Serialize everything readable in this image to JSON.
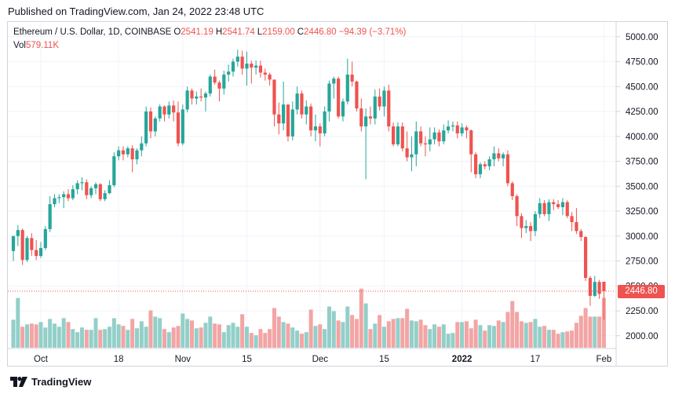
{
  "header": {
    "published": "Published on TradingView.com, Jan 24, 2022 23:48 UTC"
  },
  "legend": {
    "symbol": "Ethereum / U.S. Dollar, 1D, COINBASE",
    "open_label": "O",
    "open": "2541.19",
    "high_label": "H",
    "high": "2541.74",
    "low_label": "L",
    "low": "2159.00",
    "close_label": "C",
    "close": "2446.80",
    "change": "−94.39 (−3.71%)",
    "vol_label": "Vol",
    "vol": "579.11K"
  },
  "last_price": "2446.80",
  "footer": {
    "brand": "TradingView"
  },
  "colors": {
    "up": "#26a69a",
    "down": "#ef5350",
    "up_vol": "#93cfc9",
    "down_vol": "#f3a4a4",
    "grid": "#f0f3fa"
  },
  "chart_data": {
    "type": "candlestick",
    "title": "Ethereum / U.S. Dollar, 1D, COINBASE",
    "y_axis_ticks": [
      "5000.00",
      "4750.00",
      "4500.00",
      "4250.00",
      "4000.00",
      "3750.00",
      "3500.00",
      "3250.00",
      "3000.00",
      "2750.00",
      "2500.00",
      "2250.00",
      "2000.00"
    ],
    "ylim": [
      1880,
      5140
    ],
    "x_axis_ticks": [
      {
        "label": "Oct",
        "index": 6
      },
      {
        "label": "18",
        "index": 23
      },
      {
        "label": "Nov",
        "index": 37
      },
      {
        "label": "15",
        "index": 51
      },
      {
        "label": "Dec",
        "index": 67
      },
      {
        "label": "15",
        "index": 81
      },
      {
        "label": "2022",
        "index": 98,
        "bold": true
      },
      {
        "label": "17",
        "index": 114
      },
      {
        "label": "Feb",
        "index": 129
      }
    ],
    "x_range": [
      -1.2,
      131.5
    ],
    "ohlc": [
      [
        2850,
        3000,
        2750,
        3000
      ],
      [
        3000,
        3110,
        2900,
        3060
      ],
      [
        3060,
        3075,
        2710,
        2760
      ],
      [
        2760,
        3000,
        2740,
        2980
      ],
      [
        2980,
        3030,
        2800,
        2860
      ],
      [
        2860,
        2960,
        2760,
        2800
      ],
      [
        2800,
        2940,
        2780,
        2880
      ],
      [
        2880,
        3100,
        2860,
        3070
      ],
      [
        3070,
        3400,
        3040,
        3320
      ],
      [
        3320,
        3420,
        3290,
        3380
      ],
      [
        3380,
        3420,
        3330,
        3390
      ],
      [
        3390,
        3450,
        3280,
        3420
      ],
      [
        3420,
        3470,
        3350,
        3380
      ],
      [
        3380,
        3510,
        3360,
        3470
      ],
      [
        3470,
        3560,
        3420,
        3530
      ],
      [
        3530,
        3590,
        3460,
        3540
      ],
      [
        3540,
        3570,
        3370,
        3410
      ],
      [
        3410,
        3500,
        3380,
        3480
      ],
      [
        3480,
        3540,
        3420,
        3520
      ],
      [
        3520,
        3530,
        3350,
        3370
      ],
      [
        3370,
        3460,
        3350,
        3430
      ],
      [
        3430,
        3560,
        3420,
        3510
      ],
      [
        3510,
        3840,
        3490,
        3800
      ],
      [
        3800,
        3900,
        3760,
        3860
      ],
      [
        3860,
        3900,
        3760,
        3820
      ],
      [
        3820,
        3900,
        3790,
        3880
      ],
      [
        3880,
        3910,
        3640,
        3770
      ],
      [
        3770,
        3880,
        3720,
        3860
      ],
      [
        3860,
        4000,
        3800,
        3930
      ],
      [
        3930,
        4300,
        3900,
        4250
      ],
      [
        4250,
        4290,
        3980,
        4050
      ],
      [
        4050,
        4200,
        4000,
        4180
      ],
      [
        4180,
        4320,
        4150,
        4300
      ],
      [
        4300,
        4310,
        4150,
        4220
      ],
      [
        4220,
        4350,
        4180,
        4310
      ],
      [
        4310,
        4360,
        4150,
        4240
      ],
      [
        4240,
        4350,
        3900,
        3930
      ],
      [
        3930,
        4320,
        3910,
        4270
      ],
      [
        4270,
        4500,
        4240,
        4460
      ],
      [
        4460,
        4480,
        4320,
        4380
      ],
      [
        4380,
        4450,
        4320,
        4400
      ],
      [
        4400,
        4480,
        4350,
        4390
      ],
      [
        4390,
        4450,
        4250,
        4430
      ],
      [
        4430,
        4620,
        4400,
        4600
      ],
      [
        4600,
        4670,
        4520,
        4540
      ],
      [
        4540,
        4560,
        4350,
        4480
      ],
      [
        4480,
        4660,
        4420,
        4620
      ],
      [
        4620,
        4720,
        4550,
        4650
      ],
      [
        4650,
        4780,
        4600,
        4750
      ],
      [
        4750,
        4870,
        4700,
        4800
      ],
      [
        4800,
        4860,
        4620,
        4680
      ],
      [
        4680,
        4850,
        4510,
        4730
      ],
      [
        4730,
        4760,
        4530,
        4690
      ],
      [
        4690,
        4760,
        4620,
        4710
      ],
      [
        4710,
        4760,
        4590,
        4640
      ],
      [
        4640,
        4680,
        4560,
        4620
      ],
      [
        4620,
        4640,
        4510,
        4570
      ],
      [
        4570,
        4570,
        4100,
        4220
      ],
      [
        4220,
        4340,
        4020,
        4130
      ],
      [
        4130,
        4550,
        4060,
        4320
      ],
      [
        4320,
        4310,
        3950,
        4000
      ],
      [
        4000,
        4350,
        3960,
        4270
      ],
      [
        4270,
        4500,
        4220,
        4430
      ],
      [
        4430,
        4460,
        4180,
        4220
      ],
      [
        4220,
        4360,
        4120,
        4300
      ],
      [
        4300,
        4330,
        4000,
        4060
      ],
      [
        4060,
        4220,
        3950,
        4100
      ],
      [
        4100,
        4130,
        3900,
        4030
      ],
      [
        4030,
        4300,
        4000,
        4250
      ],
      [
        4250,
        4560,
        4150,
        4530
      ],
      [
        4530,
        4600,
        4380,
        4580
      ],
      [
        4580,
        4600,
        4180,
        4200
      ],
      [
        4200,
        4380,
        4150,
        4350
      ],
      [
        4350,
        4780,
        4320,
        4620
      ],
      [
        4620,
        4750,
        4500,
        4550
      ],
      [
        4550,
        4560,
        4250,
        4280
      ],
      [
        4280,
        4380,
        4050,
        4100
      ],
      [
        4100,
        4280,
        3570,
        4200
      ],
      [
        4200,
        4300,
        4120,
        4180
      ],
      [
        4180,
        4470,
        4120,
        4400
      ],
      [
        4400,
        4480,
        4260,
        4300
      ],
      [
        4300,
        4500,
        4200,
        4460
      ],
      [
        4460,
        4520,
        4050,
        4100
      ],
      [
        4100,
        4140,
        3900,
        3920
      ],
      [
        3920,
        4140,
        3900,
        4100
      ],
      [
        4100,
        4140,
        3850,
        3880
      ],
      [
        3880,
        4050,
        3750,
        3790
      ],
      [
        3790,
        4000,
        3650,
        3820
      ],
      [
        3820,
        4150,
        3700,
        4050
      ],
      [
        4050,
        4100,
        3900,
        3930
      ],
      [
        3930,
        4000,
        3800,
        3920
      ],
      [
        3920,
        4090,
        3850,
        3970
      ],
      [
        3970,
        4090,
        3920,
        4040
      ],
      [
        4040,
        4070,
        3900,
        3950
      ],
      [
        3950,
        4120,
        3920,
        4060
      ],
      [
        4060,
        4160,
        4030,
        4100
      ],
      [
        4100,
        4150,
        4050,
        4110
      ],
      [
        4110,
        4150,
        3980,
        4030
      ],
      [
        4030,
        4130,
        4000,
        4090
      ],
      [
        4090,
        4110,
        3980,
        4060
      ],
      [
        4060,
        4070,
        3640,
        3820
      ],
      [
        3820,
        3840,
        3580,
        3620
      ],
      [
        3620,
        3740,
        3580,
        3720
      ],
      [
        3720,
        3750,
        3670,
        3700
      ],
      [
        3700,
        3800,
        3660,
        3770
      ],
      [
        3770,
        3900,
        3700,
        3830
      ],
      [
        3830,
        3880,
        3750,
        3780
      ],
      [
        3780,
        3840,
        3700,
        3820
      ],
      [
        3820,
        3860,
        3500,
        3530
      ],
      [
        3530,
        3550,
        3360,
        3400
      ],
      [
        3400,
        3420,
        3100,
        3200
      ],
      [
        3200,
        3230,
        2980,
        3080
      ],
      [
        3080,
        3160,
        3030,
        3100
      ],
      [
        3100,
        3140,
        2950,
        3050
      ],
      [
        3050,
        3250,
        3000,
        3220
      ],
      [
        3220,
        3380,
        3180,
        3330
      ],
      [
        3330,
        3360,
        3200,
        3220
      ],
      [
        3220,
        3370,
        3150,
        3340
      ],
      [
        3340,
        3370,
        3260,
        3320
      ],
      [
        3320,
        3360,
        3270,
        3290
      ],
      [
        3290,
        3380,
        3210,
        3340
      ],
      [
        3340,
        3360,
        3180,
        3200
      ],
      [
        3200,
        3240,
        3050,
        3140
      ],
      [
        3140,
        3280,
        3020,
        3050
      ],
      [
        3050,
        3070,
        2950,
        2990
      ],
      [
        2990,
        3000,
        2550,
        2580
      ],
      [
        2580,
        2600,
        2300,
        2400
      ],
      [
        2400,
        2600,
        2390,
        2540
      ],
      [
        2540,
        2560,
        2370,
        2420
      ],
      [
        2541.19,
        2541.74,
        2159,
        2446.8
      ]
    ],
    "volume": [
      3.6,
      6.4,
      2.7,
      3.0,
      3.1,
      3.0,
      3.3,
      2.6,
      3.7,
      3.1,
      2.7,
      3.8,
      3.3,
      2.4,
      2.0,
      2.6,
      2.3,
      2.3,
      3.8,
      2.3,
      2.4,
      2.7,
      3.8,
      3.0,
      2.8,
      2.3,
      3.7,
      2.5,
      3.4,
      2.7,
      4.8,
      4.0,
      3.8,
      2.4,
      2.0,
      2.6,
      2.8,
      4.4,
      3.7,
      3.5,
      2.5,
      2.6,
      3.2,
      4.0,
      3.1,
      3.0,
      2.0,
      2.9,
      3.2,
      2.7,
      4.3,
      2.7,
      1.9,
      1.6,
      2.4,
      1.9,
      2.4,
      5.1,
      4.0,
      3.3,
      3.1,
      2.6,
      2.2,
      1.8,
      2.0,
      4.9,
      2.8,
      3.0,
      2.4,
      5.3,
      4.7,
      3.5,
      3.3,
      5.3,
      4.2,
      3.7,
      7.6,
      5.7,
      2.4,
      3.1,
      4.2,
      2.7,
      3.4,
      3.7,
      3.8,
      3.8,
      5.0,
      3.5,
      3.4,
      3.6,
      2.9,
      2.4,
      3.0,
      2.7,
      3.0,
      1.8,
      1.9,
      3.3,
      3.3,
      3.4,
      2.5,
      3.6,
      2.9,
      2.2,
      2.9,
      2.8,
      3.5,
      3.3,
      4.6,
      6.0,
      4.6,
      3.4,
      3.2,
      3.3,
      3.7,
      2.7,
      2.8,
      2.3,
      2.3,
      1.8,
      2.0,
      2.1,
      2.2,
      3.2,
      4.1,
      5.1,
      4.0,
      4.0,
      4.0,
      6.4
    ],
    "volume_max": 10.5
  }
}
